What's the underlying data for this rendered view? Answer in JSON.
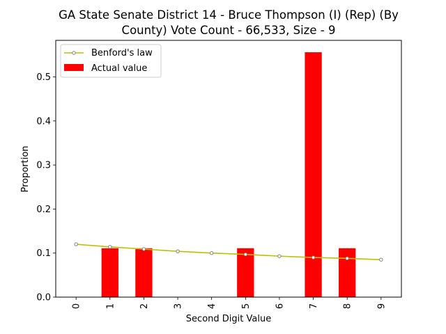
{
  "chart_data": {
    "type": "bar",
    "title_lines": [
      "GA State Senate District 14 - Bruce Thompson (I) (Rep) (By",
      "County) Vote Count - 66,533, Size - 9"
    ],
    "xlabel": "Second Digit Value",
    "ylabel": "Proportion",
    "categories": [
      "0",
      "1",
      "2",
      "3",
      "4",
      "5",
      "6",
      "7",
      "8",
      "9"
    ],
    "xlim": [
      -0.6,
      9.6
    ],
    "ylim": [
      0.0,
      0.583
    ],
    "yticks": [
      0.0,
      0.1,
      0.2,
      0.3,
      0.4,
      0.5
    ],
    "ytick_labels": [
      "0.0",
      "0.1",
      "0.2",
      "0.3",
      "0.4",
      "0.5"
    ],
    "grid": false,
    "legend_position": "upper left",
    "series": [
      {
        "name": "Benford's law",
        "kind": "line",
        "color": "#bfbf00",
        "marker_edge": "#808080",
        "values": [
          0.12,
          0.114,
          0.109,
          0.104,
          0.1,
          0.097,
          0.093,
          0.09,
          0.088,
          0.085
        ]
      },
      {
        "name": "Actual value",
        "kind": "bar",
        "color": "#ff0000",
        "values": [
          0.0,
          0.111,
          0.111,
          0.0,
          0.0,
          0.111,
          0.0,
          0.556,
          0.111,
          0.0
        ]
      }
    ]
  }
}
